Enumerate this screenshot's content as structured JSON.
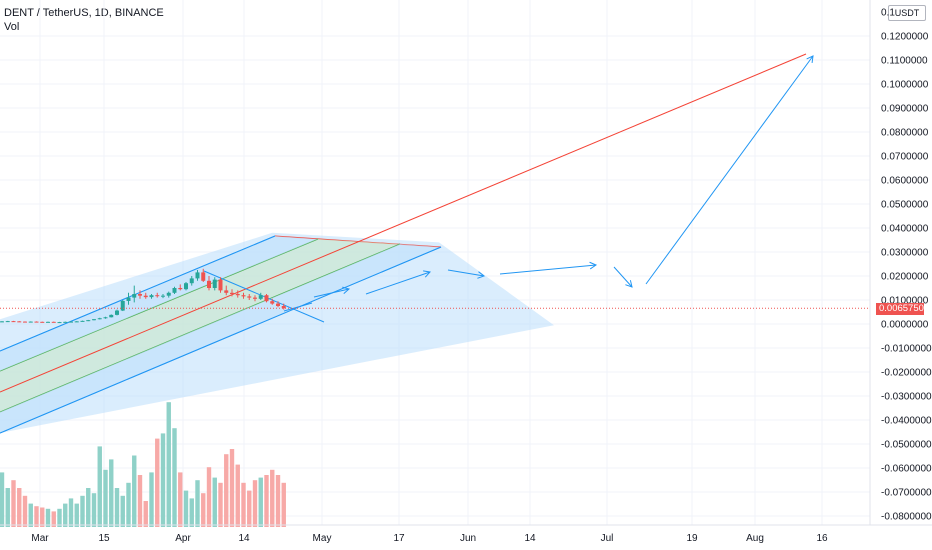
{
  "header": {
    "title": "DENT / TetherUS, 1D, BINANCE",
    "volume_label": "Vol",
    "currency": "USDT"
  },
  "current_price": {
    "label": "0.0065750",
    "value": 0.006575,
    "color": "#ef5350"
  },
  "colors": {
    "up": "#26a69a",
    "down": "#ef5350",
    "vol_up": "#8fd1c8",
    "vol_down": "#f7a9a7",
    "channel_border": "#2196f3",
    "channel_fill": "#bbdefb",
    "inner_fill": "#c8e6c9",
    "inner_line": "#4caf50",
    "median_line": "#f44336",
    "arrow": "#2196f3"
  },
  "chart_data": {
    "type": "candlestick",
    "title": "DENT / TetherUS, 1D, BINANCE",
    "y_axis": {
      "ticks": [
        "0.1200000",
        "0.1100000",
        "0.1000000",
        "0.0900000",
        "0.0800000",
        "0.0700000",
        "0.0600000",
        "0.0500000",
        "0.0400000",
        "0.0300000",
        "0.0200000",
        "0.0100000",
        "0.0000000",
        "-0.0100000",
        "-0.0200000",
        "-0.0300000",
        "-0.0400000",
        "-0.0500000",
        "-0.0600000",
        "-0.0700000",
        "-0.0800000"
      ],
      "top_partial_label": "0.1",
      "range": [
        -0.085,
        0.13
      ]
    },
    "x_axis": {
      "ticks": [
        "Mar",
        "15",
        "Apr",
        "14",
        "May",
        "17",
        "Jun",
        "14",
        "Jul",
        "19",
        "Aug",
        "16"
      ]
    },
    "candles": [
      {
        "o": 0.001,
        "h": 0.0012,
        "l": 0.0008,
        "c": 0.0011
      },
      {
        "o": 0.0011,
        "h": 0.0013,
        "l": 0.0009,
        "c": 0.0012
      },
      {
        "o": 0.0012,
        "h": 0.0013,
        "l": 0.001,
        "c": 0.0011
      },
      {
        "o": 0.0011,
        "h": 0.0012,
        "l": 0.0009,
        "c": 0.001
      },
      {
        "o": 0.001,
        "h": 0.0011,
        "l": 0.0008,
        "c": 0.0009
      },
      {
        "o": 0.0009,
        "h": 0.0011,
        "l": 0.0008,
        "c": 0.001
      },
      {
        "o": 0.001,
        "h": 0.0011,
        "l": 0.0008,
        "c": 0.0009
      },
      {
        "o": 0.0009,
        "h": 0.001,
        "l": 0.0007,
        "c": 0.0008
      },
      {
        "o": 0.0008,
        "h": 0.001,
        "l": 0.0007,
        "c": 0.0009
      },
      {
        "o": 0.0009,
        "h": 0.001,
        "l": 0.0007,
        "c": 0.0008
      },
      {
        "o": 0.0008,
        "h": 0.0009,
        "l": 0.0007,
        "c": 0.0008
      },
      {
        "o": 0.0008,
        "h": 0.001,
        "l": 0.0007,
        "c": 0.0009
      },
      {
        "o": 0.0009,
        "h": 0.0011,
        "l": 0.0008,
        "c": 0.001
      },
      {
        "o": 0.001,
        "h": 0.0012,
        "l": 0.0009,
        "c": 0.0011
      },
      {
        "o": 0.0011,
        "h": 0.0014,
        "l": 0.001,
        "c": 0.0013
      },
      {
        "o": 0.0013,
        "h": 0.0017,
        "l": 0.0012,
        "c": 0.0016
      },
      {
        "o": 0.0016,
        "h": 0.0021,
        "l": 0.0015,
        "c": 0.002
      },
      {
        "o": 0.002,
        "h": 0.0026,
        "l": 0.0019,
        "c": 0.0024
      },
      {
        "o": 0.0024,
        "h": 0.003,
        "l": 0.0022,
        "c": 0.0028
      },
      {
        "o": 0.0028,
        "h": 0.004,
        "l": 0.0027,
        "c": 0.0038
      },
      {
        "o": 0.0038,
        "h": 0.006,
        "l": 0.0036,
        "c": 0.0056
      },
      {
        "o": 0.0056,
        "h": 0.01,
        "l": 0.0054,
        "c": 0.0096
      },
      {
        "o": 0.0096,
        "h": 0.013,
        "l": 0.008,
        "c": 0.011
      },
      {
        "o": 0.011,
        "h": 0.016,
        "l": 0.009,
        "c": 0.0125
      },
      {
        "o": 0.0125,
        "h": 0.014,
        "l": 0.0105,
        "c": 0.0118
      },
      {
        "o": 0.0118,
        "h": 0.013,
        "l": 0.0105,
        "c": 0.0112
      },
      {
        "o": 0.0112,
        "h": 0.0125,
        "l": 0.0105,
        "c": 0.012
      },
      {
        "o": 0.012,
        "h": 0.013,
        "l": 0.011,
        "c": 0.0116
      },
      {
        "o": 0.0116,
        "h": 0.0125,
        "l": 0.0108,
        "c": 0.0118
      },
      {
        "o": 0.0118,
        "h": 0.0135,
        "l": 0.011,
        "c": 0.013
      },
      {
        "o": 0.013,
        "h": 0.0155,
        "l": 0.0125,
        "c": 0.015
      },
      {
        "o": 0.015,
        "h": 0.0165,
        "l": 0.014,
        "c": 0.0145
      },
      {
        "o": 0.0145,
        "h": 0.0175,
        "l": 0.014,
        "c": 0.017
      },
      {
        "o": 0.017,
        "h": 0.02,
        "l": 0.016,
        "c": 0.019
      },
      {
        "o": 0.019,
        "h": 0.0225,
        "l": 0.018,
        "c": 0.0215
      },
      {
        "o": 0.0215,
        "h": 0.023,
        "l": 0.0175,
        "c": 0.018
      },
      {
        "o": 0.018,
        "h": 0.02,
        "l": 0.014,
        "c": 0.015
      },
      {
        "o": 0.015,
        "h": 0.0195,
        "l": 0.014,
        "c": 0.0185
      },
      {
        "o": 0.0185,
        "h": 0.0195,
        "l": 0.013,
        "c": 0.014
      },
      {
        "o": 0.014,
        "h": 0.016,
        "l": 0.012,
        "c": 0.013
      },
      {
        "o": 0.013,
        "h": 0.0145,
        "l": 0.0115,
        "c": 0.0125
      },
      {
        "o": 0.0125,
        "h": 0.014,
        "l": 0.011,
        "c": 0.012
      },
      {
        "o": 0.012,
        "h": 0.013,
        "l": 0.0105,
        "c": 0.0115
      },
      {
        "o": 0.0115,
        "h": 0.0125,
        "l": 0.01,
        "c": 0.011
      },
      {
        "o": 0.011,
        "h": 0.012,
        "l": 0.0095,
        "c": 0.0105
      },
      {
        "o": 0.0105,
        "h": 0.013,
        "l": 0.01,
        "c": 0.012
      },
      {
        "o": 0.012,
        "h": 0.0125,
        "l": 0.009,
        "c": 0.0095
      },
      {
        "o": 0.0095,
        "h": 0.0105,
        "l": 0.008,
        "c": 0.0085
      },
      {
        "o": 0.0085,
        "h": 0.0095,
        "l": 0.007,
        "c": 0.0075
      },
      {
        "o": 0.0075,
        "h": 0.0085,
        "l": 0.006,
        "c": 0.0066
      }
    ],
    "volume": [
      42,
      30,
      36,
      30,
      24,
      18,
      16,
      15,
      14,
      12,
      14,
      18,
      22,
      18,
      24,
      30,
      26,
      62,
      44,
      52,
      30,
      24,
      34,
      55,
      40,
      20,
      42,
      68,
      72,
      96,
      76,
      42,
      28,
      22,
      36,
      26,
      46,
      38,
      34,
      56,
      60,
      48,
      34,
      28,
      36,
      38,
      40,
      44,
      40,
      34
    ]
  },
  "drawings": {
    "channel": {
      "top_left": [
        -20,
        0.038
      ],
      "top_right": [
        130,
        0.036
      ],
      "upper_left": [
        -150,
        0.002
      ],
      "lower_left": [
        -150,
        -0.066
      ],
      "green_low_left": [
        -150,
        -0.048
      ],
      "green_high_left": [
        -150,
        -0.016
      ],
      "inner_green_end": [
        100,
        0.0345
      ],
      "inner_green_end2": [
        75,
        0.036
      ]
    },
    "median_line_end": [
      229,
      0.111
    ],
    "arrow_path": [
      [
        88,
        0.0075
      ],
      [
        102,
        0.0086
      ],
      [
        108,
        0.0065
      ],
      [
        132,
        0.0116
      ],
      [
        143,
        0.0222
      ],
      [
        158,
        0.0208
      ],
      [
        176,
        0.0206
      ],
      [
        209,
        0.0253
      ],
      [
        216,
        0.0235
      ],
      [
        222,
        0.0155
      ],
      [
        224,
        0.0168
      ],
      [
        242,
        0.112
      ]
    ],
    "bottom_edge_end": [
      96,
      -0.0005
    ]
  }
}
